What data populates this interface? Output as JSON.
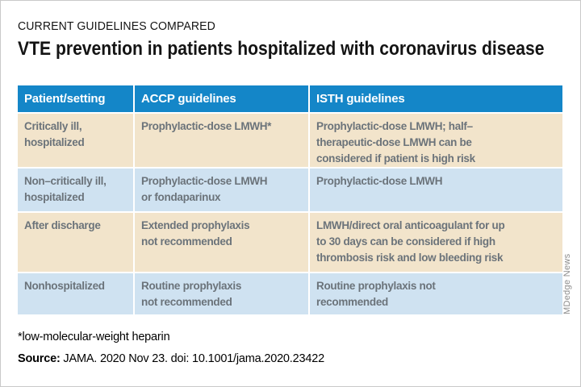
{
  "page": {
    "kicker": "CURRENT GUIDELINES COMPARED",
    "title": "VTE prevention in patients hospitalized with coronavirus disease",
    "footnote": "*low-molecular-weight heparin",
    "source_label": "Source:",
    "source_text": " JAMA. 2020 Nov 23. doi: 10.1001/jama.2020.23422",
    "credit": "MDedge News"
  },
  "colors": {
    "header_blue": "#1486c8",
    "row_tan": "#f2e4cb",
    "row_blue": "#cfe2f1",
    "body_text_gray": "#6b737a",
    "credit_gray": "#8c8c8c",
    "title_black": "#141414"
  },
  "table": {
    "headers": [
      "Patient/setting",
      "ACCP guidelines",
      "ISTH guidelines"
    ],
    "rows": [
      {
        "cells": [
          [
            "Critically ill,",
            "hospitalized"
          ],
          [
            "Prophylactic-dose LMWH*"
          ],
          [
            "Prophylactic-dose LMWH; half–",
            "therapeutic-dose LMWH can be",
            "considered if patient is high risk"
          ]
        ]
      },
      {
        "cells": [
          [
            "Non–critically ill,",
            "hospitalized"
          ],
          [
            "Prophylactic-dose LMWH",
            "or fondaparinux"
          ],
          [
            "Prophylactic-dose LMWH"
          ]
        ]
      },
      {
        "cells": [
          [
            "After discharge"
          ],
          [
            "Extended prophylaxis",
            "not recommended"
          ],
          [
            "LMWH/direct oral anticoagulant for up",
            "to 30 days can be considered if high",
            "thrombosis risk and low bleeding risk"
          ]
        ]
      },
      {
        "cells": [
          [
            "Nonhospitalized"
          ],
          [
            "Routine prophylaxis",
            "not recommended"
          ],
          [
            "Routine prophylaxis not",
            "recommended"
          ]
        ]
      }
    ]
  },
  "chart_data": {
    "type": "table",
    "title": "VTE prevention in patients hospitalized with coronavirus disease",
    "subtitle": "CURRENT GUIDELINES COMPARED",
    "columns": [
      "Patient/setting",
      "ACCP guidelines",
      "ISTH guidelines"
    ],
    "rows": [
      [
        "Critically ill, hospitalized",
        "Prophylactic-dose LMWH*",
        "Prophylactic-dose LMWH; half–therapeutic-dose LMWH can be considered if patient is high risk"
      ],
      [
        "Non–critically ill, hospitalized",
        "Prophylactic-dose LMWH or fondaparinux",
        "Prophylactic-dose LMWH"
      ],
      [
        "After discharge",
        "Extended prophylaxis not recommended",
        "LMWH/direct oral anticoagulant for up to 30 days can be considered if high thrombosis risk and low bleeding risk"
      ],
      [
        "Nonhospitalized",
        "Routine prophylaxis not recommended",
        "Routine prophylaxis not recommended"
      ]
    ],
    "footnote": "*low-molecular-weight heparin",
    "source": "Source: JAMA. 2020 Nov 23. doi: 10.1001/jama.2020.23422",
    "credit": "MDedge News",
    "layout_hints": {
      "header_bg": "#1486c8",
      "alternating_row_colors": [
        "#f2e4cb",
        "#cfe2f1"
      ],
      "gridlines": "white 2px separators"
    }
  }
}
